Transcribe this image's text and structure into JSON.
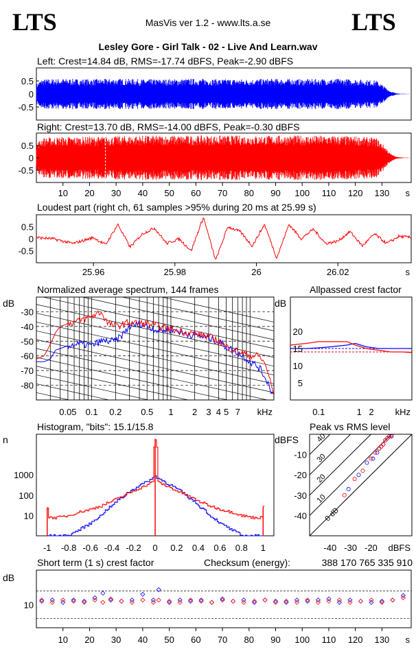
{
  "header": {
    "logo_left": "LTS",
    "logo_right": "LTS",
    "app": "MasVis ver 1.2 - www.lts.a.se",
    "file": "Lesley Gore - Girl Talk - 02 - Live And Learn.wav"
  },
  "colors": {
    "left": "#0000ff",
    "right": "#ff0000",
    "grid": "#000000"
  },
  "chart_data": [
    {
      "id": "left_wave",
      "type": "area",
      "title": "Left: Crest=14.84 dB, RMS=-17.74 dBFS, Peak=-2.90 dBFS",
      "yticks": [
        "0.5",
        "0",
        "-0.5"
      ],
      "ylim": [
        -1,
        1
      ],
      "xlim": [
        0,
        141
      ],
      "envelope_x": [
        0,
        2,
        10,
        20,
        30,
        40,
        50,
        60,
        70,
        80,
        90,
        100,
        110,
        120,
        128,
        131,
        133,
        135,
        137,
        141
      ],
      "envelope_amp": [
        0.4,
        0.6,
        0.62,
        0.6,
        0.62,
        0.6,
        0.6,
        0.62,
        0.6,
        0.6,
        0.62,
        0.6,
        0.62,
        0.6,
        0.55,
        0.3,
        0.12,
        0.04,
        0.01,
        0.0
      ]
    },
    {
      "id": "right_wave",
      "type": "area",
      "title": "Right: Crest=13.70 dB, RMS=-14.00 dBFS, Peak=-0.30 dBFS",
      "yticks": [
        "0.5",
        "0",
        "-0.5"
      ],
      "ylim": [
        -1,
        1
      ],
      "xlim": [
        0,
        141
      ],
      "xticks": [
        "10",
        "20",
        "30",
        "40",
        "50",
        "60",
        "70",
        "80",
        "90",
        "100",
        "110",
        "120",
        "130"
      ],
      "xunit": "s",
      "marker_x": 25.99,
      "envelope_x": [
        0,
        2,
        10,
        20,
        30,
        40,
        50,
        60,
        70,
        80,
        90,
        100,
        110,
        120,
        128,
        131,
        133,
        135,
        137,
        141
      ],
      "envelope_amp": [
        0.6,
        0.85,
        0.9,
        0.9,
        0.92,
        0.95,
        0.95,
        0.95,
        0.95,
        0.95,
        0.95,
        0.95,
        0.95,
        0.92,
        0.85,
        0.5,
        0.2,
        0.06,
        0.02,
        0.0
      ]
    },
    {
      "id": "loudest",
      "type": "line",
      "title": "Loudest part (right ch, 61 samples >95% during 20 ms at 25.99 s)",
      "yticks": [
        "0.5",
        "0",
        "-0.5"
      ],
      "ylim": [
        -1,
        1
      ],
      "xticks": [
        "25.96",
        "25.98",
        "26",
        "26.02"
      ],
      "xunit": "s",
      "xlim": [
        25.946,
        26.038
      ],
      "x": [
        25.946,
        25.95,
        25.955,
        25.96,
        25.963,
        25.966,
        25.969,
        25.972,
        25.975,
        25.978,
        25.981,
        25.984,
        25.987,
        25.99,
        25.993,
        25.996,
        25.999,
        26.002,
        26.005,
        26.008,
        26.011,
        26.014,
        26.017,
        26.02,
        26.023,
        26.026,
        26.029,
        26.032,
        26.035,
        26.038
      ],
      "y": [
        0.05,
        0.0,
        -0.2,
        0.05,
        -0.25,
        0.6,
        -0.35,
        0.2,
        0.45,
        -0.2,
        0.0,
        -0.5,
        0.9,
        -0.9,
        0.5,
        0.3,
        -0.3,
        0.6,
        -0.8,
        0.6,
        0.0,
        0.4,
        -0.2,
        -0.1,
        0.3,
        -0.3,
        0.2,
        -0.2,
        0.1,
        0.05
      ]
    },
    {
      "id": "spectrum",
      "type": "line",
      "title": "Normalized average spectrum, 144 frames",
      "ylabel": "dB",
      "yticks": [
        "-30",
        "-40",
        "-50",
        "-60",
        "-70",
        "-80"
      ],
      "ylim": [
        -90,
        -20
      ],
      "xticks": [
        "0.05",
        "0.1",
        "0.2",
        "0.5",
        "1",
        "2",
        "3",
        "4",
        "5",
        "7"
      ],
      "xunit": "kHz",
      "xlim": [
        0.02,
        20
      ],
      "series": [
        {
          "x": [
            0.02,
            0.025,
            0.03,
            0.035,
            0.05,
            0.07,
            0.1,
            0.13,
            0.16,
            0.2,
            0.3,
            0.4,
            0.5,
            0.7,
            1,
            1.5,
            2,
            3,
            4,
            5,
            7,
            10,
            13,
            16,
            20
          ],
          "values": [
            -64,
            -64,
            -62,
            -56,
            -53,
            -52,
            -53,
            -50,
            -50,
            -50,
            -40,
            -38,
            -40,
            -43,
            -42,
            -45,
            -46,
            -48,
            -50,
            -54,
            -58,
            -64,
            -68,
            -76,
            -88
          ]
        },
        {
          "x": [
            0.02,
            0.025,
            0.03,
            0.035,
            0.04,
            0.05,
            0.07,
            0.1,
            0.13,
            0.16,
            0.2,
            0.3,
            0.4,
            0.5,
            0.7,
            1,
            1.5,
            2,
            3,
            4,
            5,
            7,
            10,
            13,
            16,
            20
          ],
          "values": [
            -62,
            -60,
            -52,
            -44,
            -40,
            -38,
            -36,
            -33,
            -30,
            -38,
            -40,
            -37,
            -38,
            -38,
            -40,
            -42,
            -44,
            -45,
            -47,
            -50,
            -54,
            -57,
            -60,
            -60,
            -67,
            -88
          ]
        }
      ]
    },
    {
      "id": "crest",
      "type": "line",
      "title": "Allpassed crest factor",
      "ylabel": "dB",
      "yticks": [
        "20",
        "15",
        "10",
        "5"
      ],
      "ylim": [
        0,
        30
      ],
      "xticks": [
        "0.1",
        "1",
        "2"
      ],
      "xunit": "kHz",
      "xlim": [
        0.02,
        20
      ],
      "reference_db": 14,
      "series": [
        {
          "x": [
            0.02,
            0.05,
            0.1,
            0.2,
            0.5,
            0.8,
            1.5,
            3,
            6,
            12,
            20
          ],
          "values": [
            15,
            15,
            15.2,
            15.5,
            16,
            16.5,
            15.5,
            15,
            15,
            15,
            15
          ]
        },
        {
          "x": [
            0.02,
            0.05,
            0.1,
            0.2,
            0.5,
            0.8,
            1.5,
            3,
            6,
            12,
            20
          ],
          "values": [
            16,
            16.5,
            17,
            17,
            17,
            16,
            15,
            14.5,
            14,
            14,
            13.8
          ]
        }
      ]
    },
    {
      "id": "histogram",
      "type": "line",
      "title": "Histogram, \"bits\": 15.1/15.8",
      "ylabel": "n",
      "yticks": [
        "1000",
        "100",
        "10"
      ],
      "yscale": "log",
      "ylim": [
        1,
        100000
      ],
      "xticks": [
        "-1",
        "-0.8",
        "-0.6",
        "-0.4",
        "-0.2",
        "0",
        "0.2",
        "0.4",
        "0.6",
        "0.8",
        "1"
      ],
      "xlim": [
        -1.1,
        1.1
      ],
      "series": [
        {
          "x": [
            -1,
            -0.9,
            -0.8,
            -0.7,
            -0.6,
            -0.5,
            -0.4,
            -0.3,
            -0.2,
            -0.1,
            -0.02,
            0,
            0.02,
            0.1,
            0.2,
            0.3,
            0.4,
            0.5,
            0.6,
            0.7,
            0.8,
            0.9,
            1
          ],
          "values": [
            1,
            1,
            1,
            2,
            4,
            10,
            30,
            80,
            200,
            400,
            700,
            900,
            700,
            400,
            200,
            80,
            30,
            10,
            4,
            2,
            1,
            1,
            1
          ]
        },
        {
          "x": [
            -1,
            -0.99,
            -0.9,
            -0.8,
            -0.7,
            -0.6,
            -0.5,
            -0.4,
            -0.3,
            -0.2,
            -0.1,
            -0.02,
            0,
            0.02,
            0.1,
            0.2,
            0.3,
            0.4,
            0.5,
            0.6,
            0.7,
            0.8,
            0.9,
            0.99,
            1
          ],
          "values": [
            25,
            8,
            8,
            10,
            15,
            20,
            30,
            50,
            90,
            160,
            280,
            450,
            60000,
            450,
            280,
            160,
            90,
            50,
            30,
            20,
            15,
            10,
            8,
            8,
            25
          ]
        }
      ]
    },
    {
      "id": "peak_rms",
      "type": "scatter",
      "title": "Peak vs RMS level",
      "ylabel": "dBFS",
      "yticks": [
        "-10",
        "-20",
        "-30",
        "-40"
      ],
      "ylim": [
        -50,
        0
      ],
      "xlabel": "dBFS",
      "xticks": [
        "-40",
        "-30",
        "-20"
      ],
      "xlim": [
        -50,
        0
      ],
      "diagonal_labels": [
        "40",
        "30",
        "20",
        "10",
        "0 dB"
      ],
      "series": [
        {
          "x": [
            -31,
            -26,
            -22,
            -19,
            -17,
            -16,
            -15,
            -14,
            -13,
            -12,
            -11,
            -10
          ],
          "values": [
            -27,
            -20,
            -14,
            -12,
            -9,
            -7,
            -6,
            -5,
            -3,
            -2,
            -1,
            -1
          ]
        },
        {
          "x": [
            -33,
            -28,
            -24,
            -20,
            -18,
            -16,
            -15,
            -14,
            -13,
            -12,
            -11,
            -10
          ],
          "values": [
            -30,
            -22,
            -18,
            -12,
            -9,
            -7,
            -6,
            -5,
            -3,
            -2,
            -1,
            -0.5
          ]
        }
      ]
    },
    {
      "id": "short_crest",
      "type": "scatter",
      "title": "Short term (1 s) crest factor",
      "checksum_label": "Checksum (energy):",
      "checksum": "388 170 765 335 910",
      "ylabel": "dB",
      "yticks": [
        "10"
      ],
      "ylim": [
        0,
        25
      ],
      "xticks": [
        "10",
        "20",
        "30",
        "40",
        "50",
        "60",
        "70",
        "80",
        "90",
        "100",
        "110",
        "120",
        "130"
      ],
      "xunit": "s",
      "xlim": [
        0,
        141
      ],
      "series": [
        {
          "x": [
            2,
            6,
            10,
            14,
            18,
            22,
            25,
            28,
            32,
            36,
            40,
            44,
            46,
            50,
            54,
            58,
            62,
            66,
            70,
            74,
            78,
            82,
            86,
            90,
            94,
            98,
            102,
            106,
            110,
            114,
            118,
            122,
            126,
            130,
            134,
            138
          ],
          "values": [
            11.5,
            12,
            11,
            12,
            11.5,
            13,
            15,
            12,
            11.5,
            12,
            14.5,
            12,
            16.5,
            11,
            12,
            11.5,
            12,
            11,
            12.5,
            11.5,
            12,
            11,
            12,
            11.5,
            11,
            12,
            11.5,
            12,
            12.5,
            11,
            12,
            11.5,
            11,
            11.5,
            12,
            14
          ]
        },
        {
          "x": [
            2,
            6,
            10,
            14,
            18,
            22,
            25,
            28,
            32,
            36,
            40,
            44,
            46,
            50,
            54,
            58,
            62,
            66,
            70,
            74,
            78,
            82,
            86,
            90,
            94,
            98,
            102,
            106,
            110,
            114,
            118,
            122,
            126,
            130,
            134,
            138
          ],
          "values": [
            12,
            11,
            12,
            11.5,
            11,
            12,
            11,
            12.5,
            11.5,
            11,
            12,
            11,
            12,
            11.5,
            11,
            12,
            11.5,
            11,
            12,
            11.5,
            11,
            11.5,
            12,
            11,
            11.5,
            11,
            12,
            11,
            11.5,
            12,
            11,
            11.5,
            12,
            11,
            12,
            13
          ]
        }
      ]
    }
  ]
}
